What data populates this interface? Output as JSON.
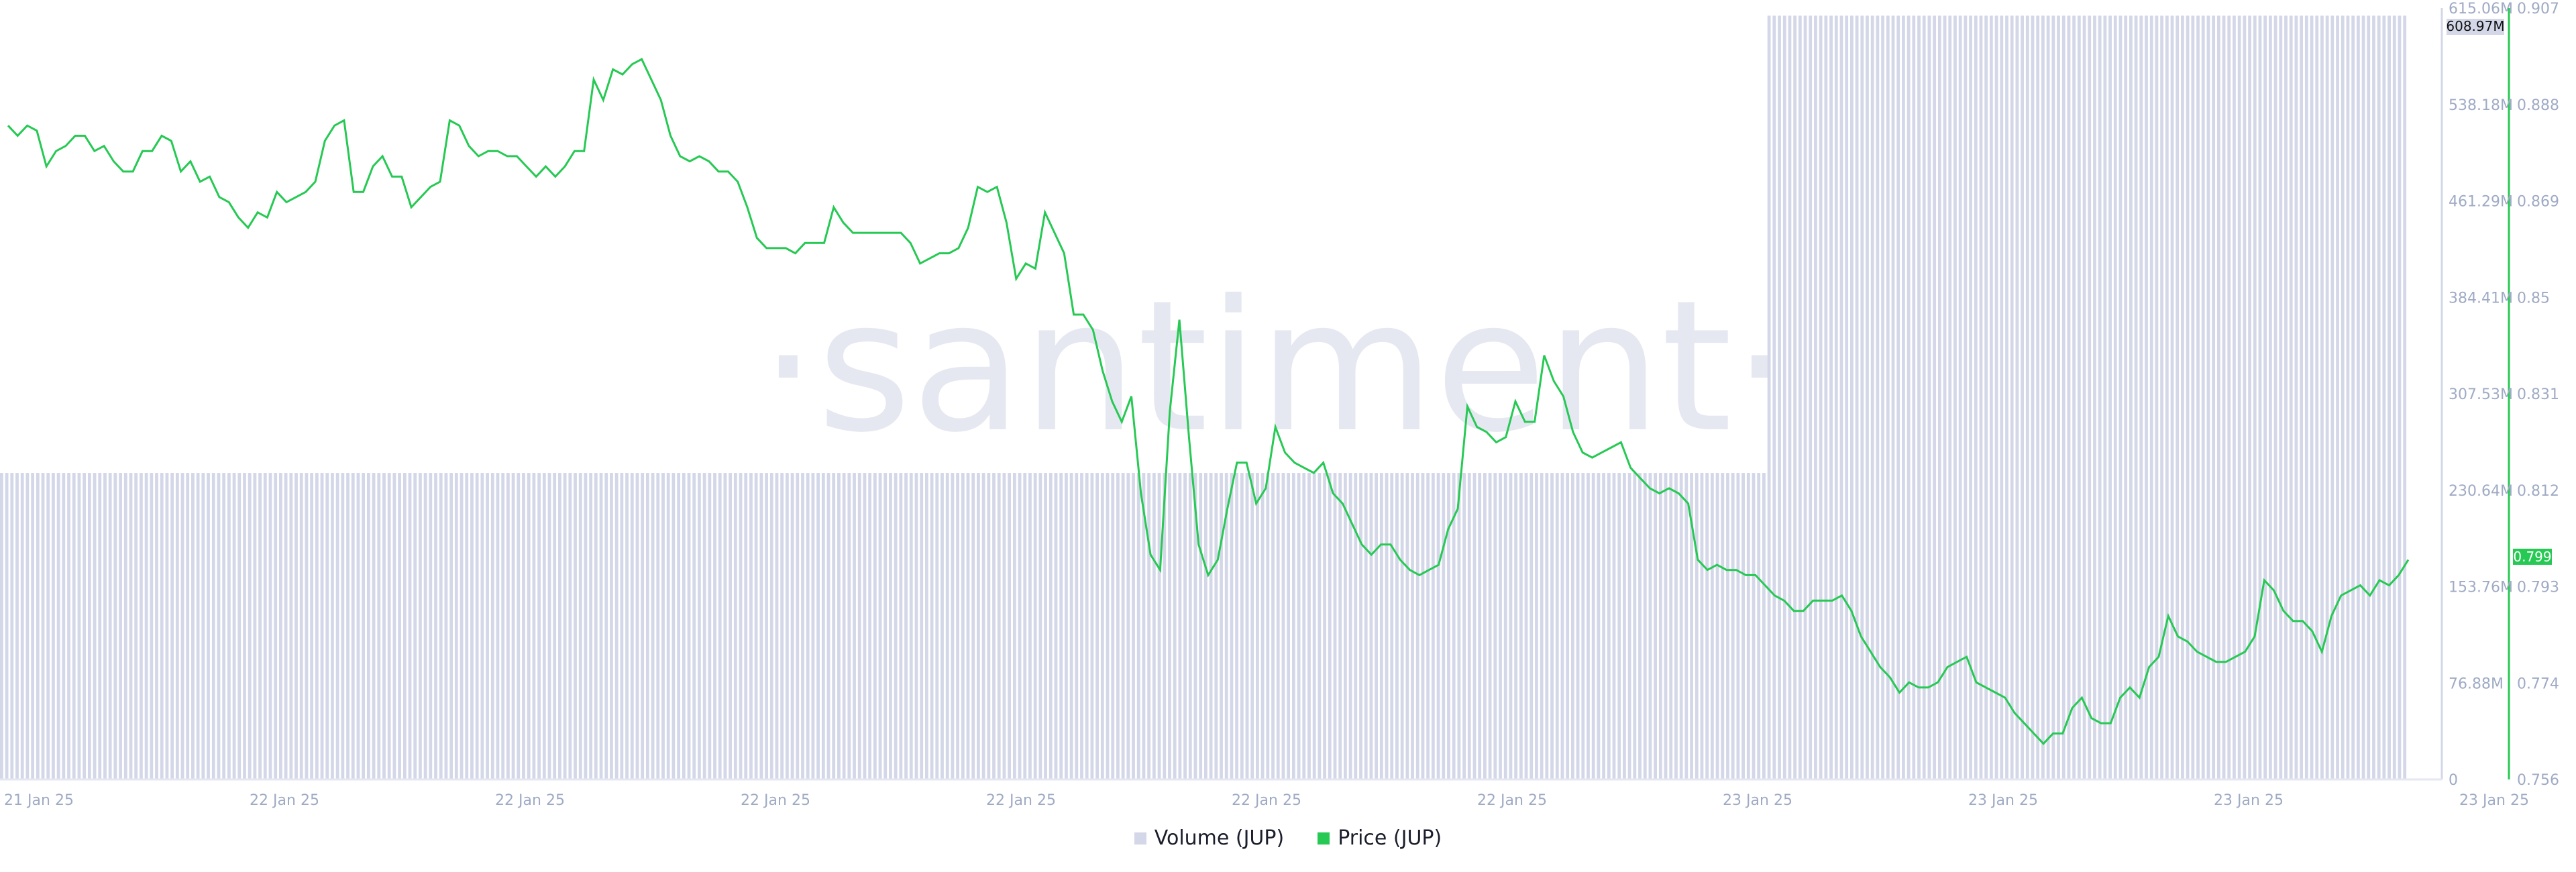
{
  "chart_data": {
    "type": "bar+line",
    "watermark": "·santiment·",
    "x_tick_labels": [
      "21 Jan 25",
      "22 Jan 25",
      "22 Jan 25",
      "22 Jan 25",
      "22 Jan 25",
      "22 Jan 25",
      "22 Jan 25",
      "23 Jan 25",
      "23 Jan 25",
      "23 Jan 25",
      "23 Jan 25"
    ],
    "volume_axis": {
      "ticks": [
        "0",
        "76.88M",
        "153.76M",
        "230.64M",
        "307.53M",
        "384.41M",
        "461.29M",
        "538.18M",
        "615.06M"
      ],
      "range_M": [
        0,
        615.06
      ],
      "current_label": "608.97M"
    },
    "price_axis": {
      "ticks": [
        "0.756",
        "0.774",
        "0.793",
        "0.812",
        "0.831",
        "0.85",
        "0.869",
        "0.888",
        "0.907"
      ],
      "range": [
        0.756,
        0.907
      ],
      "current_label": "0.799"
    },
    "series": [
      {
        "name": "Volume (JUP)",
        "kind": "bar",
        "color": "#d3d7e8",
        "runs_M": [
          {
            "value": 244.4,
            "count": 342
          },
          {
            "value": 608.97,
            "count": 124
          }
        ]
      },
      {
        "name": "Price (JUP)",
        "kind": "line",
        "color": "#26c953",
        "values": [
          0.884,
          0.882,
          0.884,
          0.883,
          0.876,
          0.879,
          0.88,
          0.882,
          0.882,
          0.879,
          0.88,
          0.877,
          0.875,
          0.875,
          0.879,
          0.879,
          0.882,
          0.881,
          0.875,
          0.877,
          0.873,
          0.874,
          0.87,
          0.869,
          0.866,
          0.864,
          0.867,
          0.866,
          0.871,
          0.869,
          0.87,
          0.871,
          0.873,
          0.881,
          0.884,
          0.885,
          0.871,
          0.871,
          0.876,
          0.878,
          0.874,
          0.874,
          0.868,
          0.87,
          0.872,
          0.873,
          0.885,
          0.884,
          0.88,
          0.878,
          0.879,
          0.879,
          0.878,
          0.878,
          0.876,
          0.874,
          0.876,
          0.874,
          0.876,
          0.879,
          0.879,
          0.893,
          0.889,
          0.895,
          0.894,
          0.896,
          0.897,
          0.893,
          0.889,
          0.882,
          0.878,
          0.877,
          0.878,
          0.877,
          0.875,
          0.875,
          0.873,
          0.868,
          0.862,
          0.86,
          0.86,
          0.86,
          0.859,
          0.861,
          0.861,
          0.861,
          0.868,
          0.865,
          0.863,
          0.863,
          0.863,
          0.863,
          0.863,
          0.863,
          0.861,
          0.857,
          0.858,
          0.859,
          0.859,
          0.86,
          0.864,
          0.872,
          0.871,
          0.872,
          0.865,
          0.854,
          0.857,
          0.856,
          0.867,
          0.863,
          0.859,
          0.847,
          0.847,
          0.844,
          0.836,
          0.83,
          0.826,
          0.831,
          0.812,
          0.8,
          0.797,
          0.828,
          0.846,
          0.823,
          0.802,
          0.796,
          0.799,
          0.809,
          0.818,
          0.818,
          0.81,
          0.813,
          0.825,
          0.82,
          0.818,
          0.817,
          0.816,
          0.818,
          0.812,
          0.81,
          0.806,
          0.802,
          0.8,
          0.802,
          0.802,
          0.799,
          0.797,
          0.796,
          0.797,
          0.798,
          0.805,
          0.809,
          0.829,
          0.825,
          0.824,
          0.822,
          0.823,
          0.83,
          0.826,
          0.826,
          0.839,
          0.834,
          0.831,
          0.824,
          0.82,
          0.819,
          0.82,
          0.821,
          0.822,
          0.817,
          0.815,
          0.813,
          0.812,
          0.813,
          0.812,
          0.81,
          0.799,
          0.797,
          0.798,
          0.797,
          0.797,
          0.796,
          0.796,
          0.794,
          0.792,
          0.791,
          0.789,
          0.789,
          0.791,
          0.791,
          0.791,
          0.792,
          0.789,
          0.784,
          0.781,
          0.778,
          0.776,
          0.773,
          0.775,
          0.774,
          0.774,
          0.775,
          0.778,
          0.779,
          0.78,
          0.775,
          0.774,
          0.773,
          0.772,
          0.769,
          0.767,
          0.765,
          0.763,
          0.765,
          0.765,
          0.77,
          0.772,
          0.768,
          0.767,
          0.767,
          0.772,
          0.774,
          0.772,
          0.778,
          0.78,
          0.788,
          0.784,
          0.783,
          0.781,
          0.78,
          0.779,
          0.779,
          0.78,
          0.781,
          0.784,
          0.795,
          0.793,
          0.789,
          0.787,
          0.787,
          0.785,
          0.781,
          0.788,
          0.792,
          0.793,
          0.794,
          0.792,
          0.795,
          0.794,
          0.796,
          0.799
        ]
      }
    ],
    "legend_placement": "bottom-center",
    "grid": false
  },
  "legend": {
    "volume_label": "Volume (JUP)",
    "price_label": "Price (JUP)",
    "volume_color": "#d3d7e8",
    "price_color": "#26c953"
  }
}
